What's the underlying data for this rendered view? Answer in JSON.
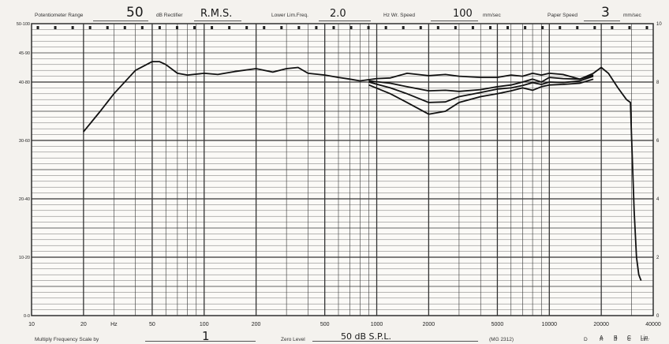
{
  "header": {
    "potentiometer_label": "Potentiometer Range",
    "potentiometer_value": "50",
    "rectifier_unit": "dB Rectifier",
    "rectifier_value": "R.M.S.",
    "lower_lim_label": "Lower Lim.Freq.",
    "lower_lim_value": "2.0",
    "writing_speed_label": "Hz Wr. Speed",
    "writing_speed_value": "100",
    "writing_speed_unit": "mm/sec",
    "paper_speed_label": "Paper Speed",
    "paper_speed_value": "3",
    "paper_speed_unit": "mm/sec"
  },
  "footer": {
    "multiply_label": "Multiply Frequency Scale by",
    "multiply_value": "1",
    "zero_level_label": "Zero Level",
    "zero_level_value": "50 dB S.P.L.",
    "chart_code": "(MG 2312)",
    "weight_row1": [
      "D",
      "A",
      "B",
      "C",
      "Lin."
    ],
    "weight_row2": [
      "A",
      "B",
      "C",
      "Lin."
    ]
  },
  "chart_data": {
    "type": "line",
    "x_scale": "log",
    "xlim": [
      10,
      40000
    ],
    "ylim": [
      0,
      50
    ],
    "grid": true,
    "x_tick_labels": [
      {
        "x": 10,
        "label": "10"
      },
      {
        "x": 20,
        "label": "20"
      },
      {
        "x": 30,
        "label": "Hz"
      },
      {
        "x": 50,
        "label": "50"
      },
      {
        "x": 100,
        "label": "100"
      },
      {
        "x": 200,
        "label": "200"
      },
      {
        "x": 500,
        "label": "500"
      },
      {
        "x": 1000,
        "label": "1000"
      },
      {
        "x": 2000,
        "label": "2000"
      },
      {
        "x": 5000,
        "label": "5000"
      },
      {
        "x": 10000,
        "label": "10000"
      },
      {
        "x": 20000,
        "label": "20000"
      },
      {
        "x": 40000,
        "label": "40000"
      }
    ],
    "y_left_labels": [
      {
        "y": 50,
        "label": "50-100"
      },
      {
        "y": 45,
        "label": "45-90"
      },
      {
        "y": 40,
        "label": "40-80"
      },
      {
        "y": 30,
        "label": "30-60"
      },
      {
        "y": 20,
        "label": "20-40"
      },
      {
        "y": 10,
        "label": "10-20"
      },
      {
        "y": 0,
        "label": "0-0"
      }
    ],
    "y_right_labels": [
      {
        "y": 50,
        "label": "10"
      },
      {
        "y": 40,
        "label": "8"
      },
      {
        "y": 30,
        "label": "6"
      },
      {
        "y": 20,
        "label": "4"
      },
      {
        "y": 10,
        "label": "2"
      },
      {
        "y": 0,
        "label": "0"
      }
    ],
    "series": [
      {
        "x": [
          20,
          25,
          30,
          40,
          50,
          55,
          60,
          70,
          80,
          100,
          120,
          150,
          200,
          250,
          300,
          350,
          400,
          500,
          600,
          700,
          800,
          1000,
          1200,
          1500,
          2000,
          2500,
          3000,
          4000,
          5000,
          6000,
          7000,
          8000,
          9000,
          10000,
          12000,
          15000,
          18000,
          20000,
          22000,
          25000,
          28000,
          29500,
          30000,
          31000,
          32000,
          33000,
          34000
        ],
        "y": [
          31.5,
          35,
          38,
          42,
          43.5,
          43.5,
          43,
          41.5,
          41.2,
          41.5,
          41.3,
          41.8,
          42.3,
          41.7,
          42.3,
          42.5,
          41.5,
          41.2,
          40.8,
          40.5,
          40.2,
          40.6,
          40.7,
          41.5,
          41.1,
          41.3,
          41,
          40.8,
          40.8,
          41.2,
          41,
          41.5,
          41.2,
          41.5,
          41.3,
          40.5,
          41.5,
          42.5,
          41.5,
          39,
          37,
          36.5,
          30,
          18,
          10,
          7,
          6
        ]
      },
      {
        "x": [
          900,
          1200,
          1500,
          2000,
          2500,
          3000,
          4000,
          5000,
          6000,
          7000,
          8000,
          9000,
          10000,
          12000,
          15000,
          18000
        ],
        "y": [
          40.2,
          39.8,
          39.2,
          38.5,
          38.6,
          38.4,
          38.7,
          39.2,
          39.5,
          40,
          40.5,
          40,
          40.8,
          40.6,
          40.5,
          41.2
        ]
      },
      {
        "x": [
          900,
          1200,
          1500,
          2000,
          2500,
          3000,
          4000,
          5000,
          6000,
          7000,
          8000,
          9000,
          10000,
          12000,
          15000,
          18000
        ],
        "y": [
          40,
          39,
          38,
          36.5,
          36.6,
          37.5,
          38.2,
          38.8,
          39,
          39.4,
          39.9,
          39.6,
          40,
          39.9,
          40.2,
          41
        ]
      },
      {
        "x": [
          900,
          1200,
          1500,
          2000,
          2500,
          3000,
          4000,
          5000,
          6000,
          7000,
          8000,
          9000,
          10000,
          12000,
          15000,
          18000
        ],
        "y": [
          39.5,
          38,
          36.5,
          34.5,
          35,
          36.5,
          37.5,
          38,
          38.5,
          39,
          38.6,
          39.2,
          39.5,
          39.6,
          39.8,
          40.5
        ]
      }
    ]
  }
}
